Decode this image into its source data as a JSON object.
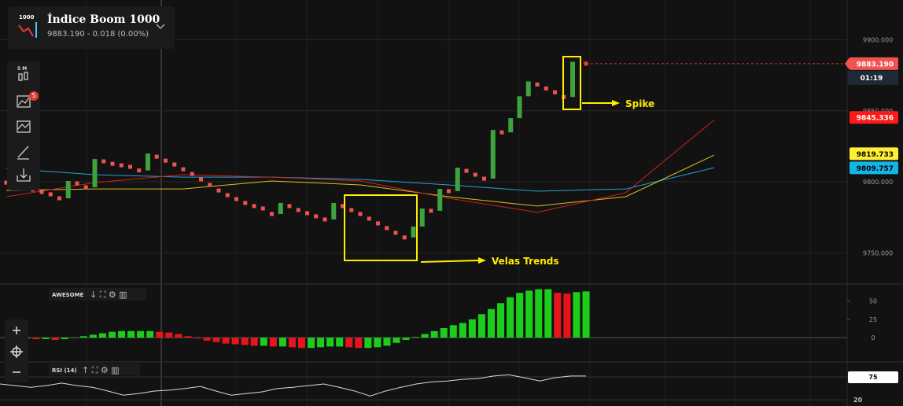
{
  "header": {
    "icon_label": "1000",
    "title": "Índice Boom 1000",
    "quote": "9883.190 - 0.018 (0.00%)"
  },
  "toolbar": {
    "timeframe": "5 M",
    "badge": "5"
  },
  "chart_data": [
    {
      "type": "candlestick",
      "close": [
        9799.4,
        9797.8,
        9796.1,
        9794.5,
        9792.8,
        9791.2,
        9788.4,
        9800.6,
        9798.9,
        9796.1,
        9816.0,
        9814.4,
        9812.7,
        9811.6,
        9810.5,
        9808.0,
        9819.9,
        9817.7,
        9814.9,
        9812.2,
        9808.8,
        9805.5,
        9801.7,
        9797.8,
        9793.9,
        9790.6,
        9787.8,
        9785.1,
        9782.9,
        9781.2,
        9777.3,
        9785.1,
        9782.9,
        9780.1,
        9777.9,
        9775.7,
        9773.5,
        9785.1,
        9782.9,
        9780.1,
        9777.3,
        9774.0,
        9770.7,
        9767.4,
        9764.1,
        9760.8,
        9768.5,
        9781.2,
        9779.6,
        9795.0,
        9793.4,
        9809.9,
        9807.7,
        9805.0,
        9802.2,
        9836.5,
        9834.8,
        9844.8,
        9860.2,
        9870.7,
        9868.5,
        9865.7,
        9863.0,
        9859.7,
        9884.5
      ],
      "up_color": "#3ea33e",
      "down_color": "#f05350",
      "ylim": [
        9728,
        9928
      ],
      "yticks": [
        {
          "value": 9900,
          "label": "9900.000"
        },
        {
          "value": 9850,
          "label": "9850.000"
        },
        {
          "value": 9800,
          "label": "9800.000"
        },
        {
          "value": 9750,
          "label": "9750.000"
        }
      ],
      "series": [
        {
          "color": "#2a9fd6",
          "x": [
            0,
            10,
            20,
            30,
            40,
            50,
            60,
            70,
            80
          ],
          "values": [
            9809.4,
            9805.0,
            9803.3,
            9803.3,
            9801.7,
            9797.8,
            9793.4,
            9795.0,
            9809.9
          ]
        },
        {
          "color": "#d9c21f",
          "x": [
            0,
            10,
            20,
            30,
            40,
            50,
            60,
            70,
            80
          ],
          "values": [
            9793.9,
            9795.0,
            9795.0,
            9800.6,
            9797.8,
            9789.5,
            9782.9,
            9789.5,
            9818.8
          ]
        },
        {
          "color": "#d0201f",
          "x": [
            0,
            10,
            20,
            30,
            40,
            50,
            60,
            70,
            80
          ],
          "values": [
            9789.5,
            9799.4,
            9805.0,
            9803.3,
            9800.6,
            9788.4,
            9778.5,
            9792.3,
            9843.6
          ]
        }
      ],
      "price_tags": [
        {
          "value": 9883.19,
          "label": "9883.190",
          "color": "#f05350",
          "text_color": "#ffffff"
        },
        {
          "value": 9845.336,
          "label": "9845.336",
          "color": "#ff1a1a",
          "text_color": "#ffffff"
        },
        {
          "value": 9819.733,
          "label": "9819.733",
          "color": "#ffee33",
          "text_color": "#000000"
        },
        {
          "value": 9809.757,
          "label": "9809.757",
          "color": "#14b4e8",
          "text_color": "#000000"
        }
      ],
      "countdown": "01:19",
      "annotations": [
        "Spike",
        "Velas Trends"
      ]
    },
    {
      "type": "bar",
      "title": "AWESOME",
      "values": [
        -1,
        -1,
        -2,
        -2,
        -3,
        -2,
        0,
        2,
        4,
        6,
        8,
        9,
        9,
        9,
        9,
        8,
        7,
        5,
        2,
        -1,
        -4,
        -6,
        -8,
        -9,
        -10,
        -11,
        -11,
        -12,
        -12,
        -13,
        -14,
        -14,
        -13,
        -12,
        -12,
        -13,
        -14,
        -14,
        -13,
        -11,
        -7,
        -3,
        1,
        5,
        9,
        13,
        17,
        20,
        25,
        32,
        39,
        47,
        55,
        61,
        64,
        66,
        66,
        61,
        60,
        62,
        63
      ],
      "up_color": "#1ccd1c",
      "down_color": "#e8141c",
      "ylim": [
        -33,
        73
      ],
      "yticks": [
        0,
        25,
        50
      ]
    },
    {
      "type": "line",
      "title": "RSI (14)",
      "values": [
        58,
        54,
        50,
        54,
        60,
        54,
        50,
        41,
        31,
        35,
        41,
        43,
        47,
        52,
        41,
        31,
        35,
        39,
        47,
        50,
        54,
        58,
        50,
        41,
        29,
        41,
        50,
        58,
        63,
        65,
        69,
        71,
        77,
        80,
        73,
        65,
        73,
        77,
        77
      ],
      "color": "#d8d8d8",
      "ylim": [
        5,
        109
      ],
      "yticks": [
        75,
        20
      ]
    }
  ]
}
